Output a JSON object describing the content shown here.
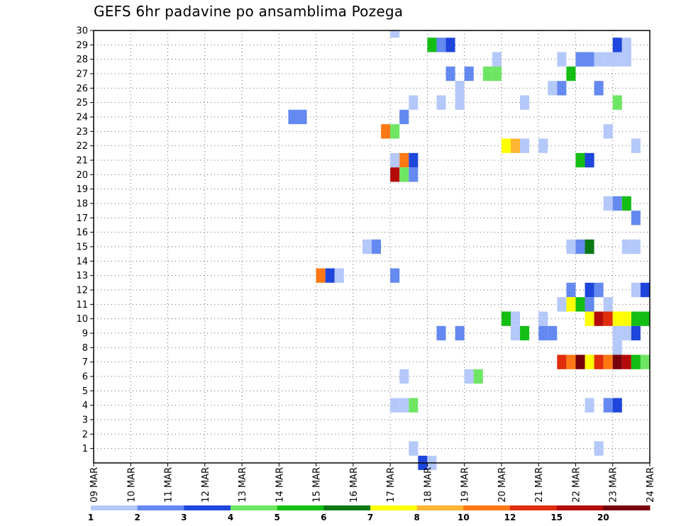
{
  "chart_data": {
    "type": "heatmap",
    "title": "GEFS 6hr padavine po ansamblima Pozega",
    "xlabel": "",
    "ylabel": "",
    "x_ticks": [
      "09 MAR",
      "10 MAR",
      "11 MAR",
      "12 MAR",
      "13 MAR",
      "14 MAR",
      "15 MAR",
      "16 MAR",
      "17 MAR",
      "18 MAR",
      "19 MAR",
      "20 MAR",
      "21 MAR",
      "22 MAR",
      "23 MAR",
      "24 MAR"
    ],
    "x_range": [
      0,
      15
    ],
    "y_ticks": [
      1,
      2,
      3,
      4,
      5,
      6,
      7,
      8,
      9,
      10,
      11,
      12,
      13,
      14,
      15,
      16,
      17,
      18,
      19,
      20,
      21,
      22,
      23,
      24,
      25,
      26,
      27,
      28,
      29,
      30
    ],
    "y_range": [
      0,
      30
    ],
    "grid": true,
    "legend": {
      "position": "bottom",
      "labels": [
        "1",
        "2",
        "3",
        "4",
        "5",
        "6",
        "7",
        "8",
        "10",
        "12",
        "15",
        "20"
      ],
      "colors": [
        "#b4c8fa",
        "#6489f0",
        "#1e46dc",
        "#6ee664",
        "#14be14",
        "#0a7814",
        "#ffff00",
        "#ffb432",
        "#ff7814",
        "#e12d0a",
        "#b40a0a",
        "#78000a"
      ]
    },
    "cell_width_days": 0.25,
    "cells": [
      {
        "m": 30,
        "t": 8.0,
        "v": 1
      },
      {
        "m": 29,
        "t": 9.0,
        "v": 5
      },
      {
        "m": 29,
        "t": 9.25,
        "v": 2
      },
      {
        "m": 29,
        "t": 9.5,
        "v": 3
      },
      {
        "m": 29,
        "t": 14.0,
        "v": 3
      },
      {
        "m": 29,
        "t": 14.25,
        "v": 1
      },
      {
        "m": 28,
        "t": 10.75,
        "v": 1
      },
      {
        "m": 28,
        "t": 12.5,
        "v": 1
      },
      {
        "m": 28,
        "t": 13.0,
        "v": 2
      },
      {
        "m": 28,
        "t": 13.25,
        "v": 2
      },
      {
        "m": 28,
        "t": 13.5,
        "v": 1
      },
      {
        "m": 28,
        "t": 13.75,
        "v": 1
      },
      {
        "m": 28,
        "t": 14.0,
        "v": 1
      },
      {
        "m": 28,
        "t": 14.25,
        "v": 1
      },
      {
        "m": 27,
        "t": 9.5,
        "v": 2
      },
      {
        "m": 27,
        "t": 10.0,
        "v": 2
      },
      {
        "m": 27,
        "t": 10.5,
        "v": 4
      },
      {
        "m": 27,
        "t": 10.75,
        "v": 4
      },
      {
        "m": 27,
        "t": 12.75,
        "v": 5
      },
      {
        "m": 26,
        "t": 9.75,
        "v": 1
      },
      {
        "m": 26,
        "t": 12.25,
        "v": 1
      },
      {
        "m": 26,
        "t": 12.5,
        "v": 2
      },
      {
        "m": 26,
        "t": 13.5,
        "v": 2
      },
      {
        "m": 25,
        "t": 8.5,
        "v": 1
      },
      {
        "m": 25,
        "t": 9.25,
        "v": 1
      },
      {
        "m": 25,
        "t": 9.75,
        "v": 1
      },
      {
        "m": 25,
        "t": 11.5,
        "v": 1
      },
      {
        "m": 25,
        "t": 14.0,
        "v": 4
      },
      {
        "m": 24,
        "t": 8.25,
        "v": 2
      },
      {
        "m": 24,
        "t": 5.5,
        "v": 2
      },
      {
        "m": 24,
        "t": 5.25,
        "v": 2
      },
      {
        "m": 23,
        "t": 7.75,
        "v": 10
      },
      {
        "m": 23,
        "t": 8.0,
        "v": 4
      },
      {
        "m": 23,
        "t": 13.75,
        "v": 1
      },
      {
        "m": 22,
        "t": 11.0,
        "v": 7
      },
      {
        "m": 22,
        "t": 11.25,
        "v": 8
      },
      {
        "m": 22,
        "t": 11.5,
        "v": 1
      },
      {
        "m": 22,
        "t": 12.0,
        "v": 1
      },
      {
        "m": 22,
        "t": 14.5,
        "v": 1
      },
      {
        "m": 21,
        "t": 8.0,
        "v": 1
      },
      {
        "m": 21,
        "t": 8.25,
        "v": 10
      },
      {
        "m": 21,
        "t": 8.5,
        "v": 3
      },
      {
        "m": 21,
        "t": 13.0,
        "v": 5
      },
      {
        "m": 21,
        "t": 13.25,
        "v": 3
      },
      {
        "m": 20,
        "t": 8.0,
        "v": 15
      },
      {
        "m": 20,
        "t": 8.25,
        "v": 4
      },
      {
        "m": 20,
        "t": 8.5,
        "v": 2
      },
      {
        "m": 18,
        "t": 13.75,
        "v": 1
      },
      {
        "m": 18,
        "t": 14.0,
        "v": 2
      },
      {
        "m": 18,
        "t": 14.25,
        "v": 5
      },
      {
        "m": 17,
        "t": 14.5,
        "v": 2
      },
      {
        "m": 15,
        "t": 7.25,
        "v": 1
      },
      {
        "m": 15,
        "t": 7.5,
        "v": 2
      },
      {
        "m": 15,
        "t": 12.75,
        "v": 1
      },
      {
        "m": 15,
        "t": 13.0,
        "v": 2
      },
      {
        "m": 15,
        "t": 13.25,
        "v": 6
      },
      {
        "m": 15,
        "t": 14.25,
        "v": 1
      },
      {
        "m": 15,
        "t": 14.5,
        "v": 1
      },
      {
        "m": 13,
        "t": 6.0,
        "v": 10
      },
      {
        "m": 13,
        "t": 6.25,
        "v": 3
      },
      {
        "m": 13,
        "t": 6.5,
        "v": 1
      },
      {
        "m": 13,
        "t": 8.0,
        "v": 2
      },
      {
        "m": 12,
        "t": 12.75,
        "v": 2
      },
      {
        "m": 12,
        "t": 13.25,
        "v": 3
      },
      {
        "m": 12,
        "t": 13.5,
        "v": 2
      },
      {
        "m": 12,
        "t": 14.5,
        "v": 1
      },
      {
        "m": 12,
        "t": 14.75,
        "v": 3
      },
      {
        "m": 11,
        "t": 12.5,
        "v": 1
      },
      {
        "m": 11,
        "t": 12.75,
        "v": 7
      },
      {
        "m": 11,
        "t": 13.0,
        "v": 5
      },
      {
        "m": 11,
        "t": 13.25,
        "v": 2
      },
      {
        "m": 11,
        "t": 13.75,
        "v": 1
      },
      {
        "m": 10,
        "t": 11.0,
        "v": 5
      },
      {
        "m": 10,
        "t": 11.25,
        "v": 1
      },
      {
        "m": 10,
        "t": 12.0,
        "v": 1
      },
      {
        "m": 10,
        "t": 13.25,
        "v": 7
      },
      {
        "m": 10,
        "t": 13.5,
        "v": 15
      },
      {
        "m": 10,
        "t": 13.75,
        "v": 12
      },
      {
        "m": 10,
        "t": 14.0,
        "v": 7
      },
      {
        "m": 10,
        "t": 14.25,
        "v": 7
      },
      {
        "m": 10,
        "t": 14.5,
        "v": 5
      },
      {
        "m": 10,
        "t": 14.75,
        "v": 5
      },
      {
        "m": 9,
        "t": 9.25,
        "v": 2
      },
      {
        "m": 9,
        "t": 9.75,
        "v": 2
      },
      {
        "m": 9,
        "t": 11.25,
        "v": 1
      },
      {
        "m": 9,
        "t": 11.5,
        "v": 5
      },
      {
        "m": 9,
        "t": 12.0,
        "v": 2
      },
      {
        "m": 9,
        "t": 12.25,
        "v": 2
      },
      {
        "m": 9,
        "t": 14.0,
        "v": 1
      },
      {
        "m": 9,
        "t": 14.25,
        "v": 1
      },
      {
        "m": 9,
        "t": 14.5,
        "v": 3
      },
      {
        "m": 8,
        "t": 14.0,
        "v": 1
      },
      {
        "m": 7,
        "t": 12.5,
        "v": 12
      },
      {
        "m": 7,
        "t": 12.75,
        "v": 10
      },
      {
        "m": 7,
        "t": 13.0,
        "v": 20
      },
      {
        "m": 7,
        "t": 13.25,
        "v": 7
      },
      {
        "m": 7,
        "t": 13.5,
        "v": 12
      },
      {
        "m": 7,
        "t": 13.75,
        "v": 10
      },
      {
        "m": 7,
        "t": 14.0,
        "v": 20
      },
      {
        "m": 7,
        "t": 14.25,
        "v": 15
      },
      {
        "m": 7,
        "t": 14.5,
        "v": 5
      },
      {
        "m": 7,
        "t": 14.75,
        "v": 4
      },
      {
        "m": 6,
        "t": 8.25,
        "v": 1
      },
      {
        "m": 6,
        "t": 10.0,
        "v": 1
      },
      {
        "m": 6,
        "t": 10.25,
        "v": 4
      },
      {
        "m": 4,
        "t": 8.0,
        "v": 1
      },
      {
        "m": 4,
        "t": 8.25,
        "v": 1
      },
      {
        "m": 4,
        "t": 8.5,
        "v": 4
      },
      {
        "m": 4,
        "t": 13.25,
        "v": 1
      },
      {
        "m": 4,
        "t": 13.75,
        "v": 2
      },
      {
        "m": 4,
        "t": 14.0,
        "v": 3
      },
      {
        "m": 1,
        "t": 8.5,
        "v": 1
      },
      {
        "m": 1,
        "t": 13.5,
        "v": 1
      },
      {
        "m": 0,
        "t": 8.75,
        "v": 3
      },
      {
        "m": 0,
        "t": 9.0,
        "v": 1
      }
    ]
  }
}
